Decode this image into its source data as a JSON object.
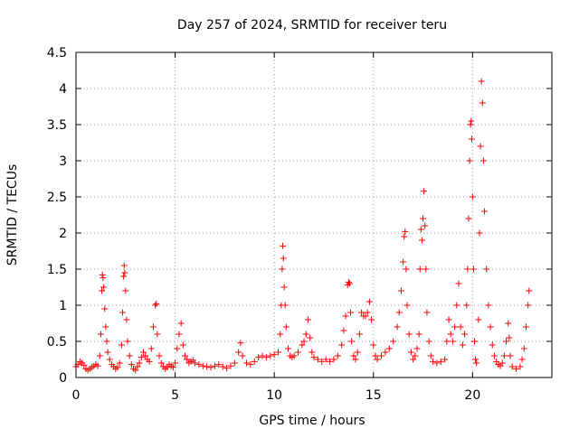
{
  "chart_data": {
    "type": "scatter",
    "title": "Day 257 of 2024, SRMTID for receiver teru",
    "xlabel": "GPS time / hours",
    "ylabel": "SRMTID / TECUs",
    "xlim": [
      0,
      24
    ],
    "ylim": [
      0,
      4.5
    ],
    "grid": true,
    "marker": "+",
    "marker_color": "#ff0000",
    "x_ticks": [
      {
        "value": 0,
        "label": "0"
      },
      {
        "value": 5,
        "label": "5"
      },
      {
        "value": 10,
        "label": "10"
      },
      {
        "value": 15,
        "label": "15"
      },
      {
        "value": 20,
        "label": "20"
      }
    ],
    "y_ticks": [
      {
        "value": 0,
        "label": "0"
      },
      {
        "value": 0.5,
        "label": "0.5"
      },
      {
        "value": 1,
        "label": "1"
      },
      {
        "value": 1.5,
        "label": "1.5"
      },
      {
        "value": 2,
        "label": "2"
      },
      {
        "value": 2.5,
        "label": "2.5"
      },
      {
        "value": 3,
        "label": "3"
      },
      {
        "value": 3.5,
        "label": "3.5"
      },
      {
        "value": 4,
        "label": "4"
      },
      {
        "value": 4.5,
        "label": "4.5"
      }
    ],
    "series": [
      {
        "name": "SRMTID",
        "points": [
          [
            0.0,
            0.15
          ],
          [
            0.1,
            0.18
          ],
          [
            0.2,
            0.22
          ],
          [
            0.3,
            0.2
          ],
          [
            0.4,
            0.17
          ],
          [
            0.5,
            0.12
          ],
          [
            0.6,
            0.1
          ],
          [
            0.7,
            0.12
          ],
          [
            0.8,
            0.14
          ],
          [
            0.9,
            0.16
          ],
          [
            1.0,
            0.18
          ],
          [
            1.1,
            0.16
          ],
          [
            1.2,
            0.3
          ],
          [
            1.25,
            0.6
          ],
          [
            1.3,
            1.2
          ],
          [
            1.33,
            1.42
          ],
          [
            1.36,
            1.38
          ],
          [
            1.4,
            1.25
          ],
          [
            1.45,
            0.95
          ],
          [
            1.5,
            0.7
          ],
          [
            1.55,
            0.5
          ],
          [
            1.6,
            0.35
          ],
          [
            1.7,
            0.25
          ],
          [
            1.8,
            0.18
          ],
          [
            1.9,
            0.15
          ],
          [
            2.0,
            0.12
          ],
          [
            2.1,
            0.14
          ],
          [
            2.2,
            0.2
          ],
          [
            2.3,
            0.45
          ],
          [
            2.35,
            0.9
          ],
          [
            2.4,
            1.4
          ],
          [
            2.43,
            1.55
          ],
          [
            2.46,
            1.45
          ],
          [
            2.5,
            1.2
          ],
          [
            2.55,
            0.8
          ],
          [
            2.6,
            0.5
          ],
          [
            2.7,
            0.3
          ],
          [
            2.8,
            0.18
          ],
          [
            2.9,
            0.12
          ],
          [
            3.0,
            0.1
          ],
          [
            3.1,
            0.15
          ],
          [
            3.2,
            0.2
          ],
          [
            3.3,
            0.28
          ],
          [
            3.4,
            0.35
          ],
          [
            3.5,
            0.3
          ],
          [
            3.6,
            0.25
          ],
          [
            3.7,
            0.22
          ],
          [
            3.8,
            0.4
          ],
          [
            3.9,
            0.7
          ],
          [
            4.0,
            1.0
          ],
          [
            4.05,
            1.02
          ],
          [
            4.1,
            0.6
          ],
          [
            4.2,
            0.3
          ],
          [
            4.3,
            0.2
          ],
          [
            4.4,
            0.15
          ],
          [
            4.5,
            0.12
          ],
          [
            4.6,
            0.14
          ],
          [
            4.7,
            0.18
          ],
          [
            4.8,
            0.16
          ],
          [
            4.9,
            0.14
          ],
          [
            5.0,
            0.2
          ],
          [
            5.1,
            0.4
          ],
          [
            5.2,
            0.6
          ],
          [
            5.3,
            0.75
          ],
          [
            5.4,
            0.45
          ],
          [
            5.5,
            0.3
          ],
          [
            5.6,
            0.25
          ],
          [
            5.7,
            0.2
          ],
          [
            5.8,
            0.22
          ],
          [
            5.9,
            0.24
          ],
          [
            6.0,
            0.2
          ],
          [
            6.2,
            0.18
          ],
          [
            6.4,
            0.16
          ],
          [
            6.6,
            0.15
          ],
          [
            6.8,
            0.14
          ],
          [
            7.0,
            0.16
          ],
          [
            7.2,
            0.18
          ],
          [
            7.4,
            0.15
          ],
          [
            7.6,
            0.13
          ],
          [
            7.8,
            0.16
          ],
          [
            8.0,
            0.2
          ],
          [
            8.2,
            0.35
          ],
          [
            8.3,
            0.48
          ],
          [
            8.4,
            0.3
          ],
          [
            8.6,
            0.2
          ],
          [
            8.8,
            0.18
          ],
          [
            9.0,
            0.22
          ],
          [
            9.2,
            0.28
          ],
          [
            9.4,
            0.3
          ],
          [
            9.6,
            0.28
          ],
          [
            9.8,
            0.3
          ],
          [
            10.0,
            0.32
          ],
          [
            10.2,
            0.35
          ],
          [
            10.3,
            0.6
          ],
          [
            10.35,
            1.0
          ],
          [
            10.4,
            1.5
          ],
          [
            10.43,
            1.82
          ],
          [
            10.46,
            1.65
          ],
          [
            10.5,
            1.25
          ],
          [
            10.55,
            1.0
          ],
          [
            10.6,
            0.7
          ],
          [
            10.7,
            0.4
          ],
          [
            10.8,
            0.3
          ],
          [
            10.9,
            0.28
          ],
          [
            11.0,
            0.3
          ],
          [
            11.2,
            0.35
          ],
          [
            11.4,
            0.45
          ],
          [
            11.5,
            0.5
          ],
          [
            11.6,
            0.6
          ],
          [
            11.7,
            0.8
          ],
          [
            11.8,
            0.55
          ],
          [
            11.9,
            0.35
          ],
          [
            12.0,
            0.28
          ],
          [
            12.2,
            0.25
          ],
          [
            12.4,
            0.22
          ],
          [
            12.6,
            0.25
          ],
          [
            12.8,
            0.22
          ],
          [
            13.0,
            0.25
          ],
          [
            13.2,
            0.3
          ],
          [
            13.4,
            0.45
          ],
          [
            13.5,
            0.65
          ],
          [
            13.6,
            0.85
          ],
          [
            13.7,
            1.28
          ],
          [
            13.75,
            1.32
          ],
          [
            13.8,
            1.3
          ],
          [
            13.85,
            0.9
          ],
          [
            13.9,
            0.5
          ],
          [
            14.0,
            0.3
          ],
          [
            14.1,
            0.25
          ],
          [
            14.2,
            0.35
          ],
          [
            14.3,
            0.6
          ],
          [
            14.4,
            0.9
          ],
          [
            14.5,
            0.85
          ],
          [
            14.6,
            0.85
          ],
          [
            14.7,
            0.9
          ],
          [
            14.8,
            1.05
          ],
          [
            14.9,
            0.8
          ],
          [
            15.0,
            0.45
          ],
          [
            15.1,
            0.3
          ],
          [
            15.2,
            0.25
          ],
          [
            15.4,
            0.3
          ],
          [
            15.6,
            0.35
          ],
          [
            15.8,
            0.4
          ],
          [
            16.0,
            0.5
          ],
          [
            16.2,
            0.7
          ],
          [
            16.3,
            0.9
          ],
          [
            16.4,
            1.2
          ],
          [
            16.5,
            1.6
          ],
          [
            16.55,
            1.95
          ],
          [
            16.6,
            2.02
          ],
          [
            16.65,
            1.5
          ],
          [
            16.7,
            1.0
          ],
          [
            16.8,
            0.6
          ],
          [
            16.9,
            0.35
          ],
          [
            17.0,
            0.25
          ],
          [
            17.1,
            0.3
          ],
          [
            17.2,
            0.4
          ],
          [
            17.3,
            0.6
          ],
          [
            17.35,
            1.5
          ],
          [
            17.4,
            2.05
          ],
          [
            17.45,
            1.9
          ],
          [
            17.5,
            2.2
          ],
          [
            17.55,
            2.58
          ],
          [
            17.6,
            2.1
          ],
          [
            17.65,
            1.5
          ],
          [
            17.7,
            0.9
          ],
          [
            17.8,
            0.5
          ],
          [
            17.9,
            0.3
          ],
          [
            18.0,
            0.22
          ],
          [
            18.2,
            0.2
          ],
          [
            18.4,
            0.22
          ],
          [
            18.6,
            0.25
          ],
          [
            18.7,
            0.5
          ],
          [
            18.8,
            0.8
          ],
          [
            18.9,
            0.6
          ],
          [
            19.0,
            0.5
          ],
          [
            19.1,
            0.7
          ],
          [
            19.2,
            1.0
          ],
          [
            19.3,
            1.3
          ],
          [
            19.4,
            0.7
          ],
          [
            19.5,
            0.45
          ],
          [
            19.6,
            0.6
          ],
          [
            19.7,
            1.0
          ],
          [
            19.75,
            1.5
          ],
          [
            19.8,
            2.2
          ],
          [
            19.85,
            3.0
          ],
          [
            19.9,
            3.5
          ],
          [
            19.93,
            3.55
          ],
          [
            19.96,
            3.3
          ],
          [
            20.0,
            2.5
          ],
          [
            20.05,
            1.5
          ],
          [
            20.1,
            0.5
          ],
          [
            20.15,
            0.25
          ],
          [
            20.2,
            0.2
          ],
          [
            20.3,
            0.8
          ],
          [
            20.35,
            2.0
          ],
          [
            20.4,
            3.2
          ],
          [
            20.45,
            4.1
          ],
          [
            20.5,
            3.8
          ],
          [
            20.55,
            3.0
          ],
          [
            20.6,
            2.3
          ],
          [
            20.7,
            1.5
          ],
          [
            20.8,
            1.0
          ],
          [
            20.9,
            0.7
          ],
          [
            21.0,
            0.45
          ],
          [
            21.1,
            0.3
          ],
          [
            21.2,
            0.22
          ],
          [
            21.3,
            0.18
          ],
          [
            21.4,
            0.16
          ],
          [
            21.5,
            0.2
          ],
          [
            21.6,
            0.3
          ],
          [
            21.7,
            0.5
          ],
          [
            21.8,
            0.75
          ],
          [
            21.85,
            0.55
          ],
          [
            21.9,
            0.3
          ],
          [
            22.0,
            0.15
          ],
          [
            22.2,
            0.12
          ],
          [
            22.4,
            0.15
          ],
          [
            22.5,
            0.25
          ],
          [
            22.6,
            0.4
          ],
          [
            22.7,
            0.7
          ],
          [
            22.8,
            1.0
          ],
          [
            22.85,
            1.2
          ]
        ]
      }
    ]
  }
}
